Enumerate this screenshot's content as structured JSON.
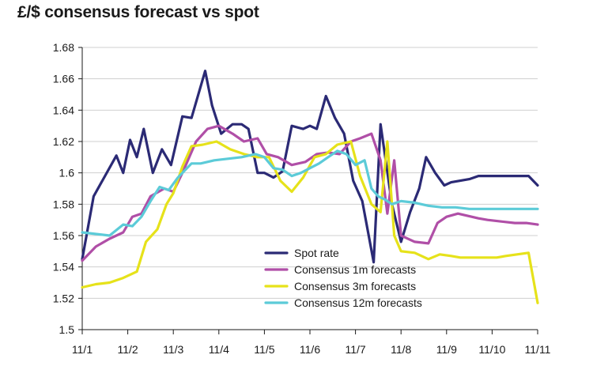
{
  "chart_data": {
    "type": "line",
    "title": "£/$ consensus forecast vs spot",
    "xlabel": "",
    "ylabel": "",
    "ylim": [
      1.5,
      1.68
    ],
    "xlim": [
      0,
      10
    ],
    "x_ticks": [
      0,
      1,
      2,
      3,
      4,
      5,
      6,
      7,
      8,
      9,
      10
    ],
    "x_tick_labels": [
      "11/1",
      "11/2",
      "11/3",
      "11/4",
      "11/5",
      "11/6",
      "11/7",
      "11/8",
      "11/9",
      "11/10",
      "11/11"
    ],
    "y_ticks": [
      1.5,
      1.52,
      1.54,
      1.56,
      1.58,
      1.6,
      1.62,
      1.64,
      1.66,
      1.68
    ],
    "y_tick_labels": [
      "1.5",
      "1.52",
      "1.54",
      "1.56",
      "1.58",
      "1.6",
      "1.62",
      "1.64",
      "1.66",
      "1.68"
    ],
    "legend_position": "bottom-center",
    "series": [
      {
        "name": "Spot rate",
        "color": "#2b2a75",
        "x": [
          0,
          0.25,
          0.5,
          0.75,
          0.9,
          1.05,
          1.2,
          1.35,
          1.55,
          1.75,
          1.95,
          2.2,
          2.4,
          2.7,
          2.85,
          3.05,
          3.3,
          3.5,
          3.65,
          3.85,
          4.0,
          4.2,
          4.4,
          4.6,
          4.85,
          5.0,
          5.15,
          5.35,
          5.55,
          5.75,
          5.95,
          6.15,
          6.4,
          6.55,
          6.8,
          7.0,
          7.2,
          7.4,
          7.55,
          7.75,
          7.95,
          8.1,
          8.3,
          8.5,
          8.6,
          8.7,
          8.8,
          8.9,
          9.0,
          9.2,
          9.4,
          9.6,
          9.8,
          10.0
        ],
        "y": [
          1.545,
          1.585,
          1.598,
          1.611,
          1.6,
          1.621,
          1.61,
          1.628,
          1.6,
          1.615,
          1.605,
          1.636,
          1.635,
          1.665,
          1.643,
          1.625,
          1.631,
          1.631,
          1.628,
          1.6,
          1.6,
          1.597,
          1.601,
          1.63,
          1.628,
          1.63,
          1.628,
          1.649,
          1.635,
          1.625,
          1.595,
          1.582,
          1.543,
          1.631,
          1.58,
          1.556,
          1.575,
          1.59,
          1.61,
          1.6,
          1.592,
          1.594,
          1.595,
          1.596,
          1.597,
          1.598,
          1.598,
          1.598,
          1.598,
          1.598,
          1.598,
          1.598,
          1.598,
          1.592
        ]
      },
      {
        "name": "Consensus 1m forecasts",
        "color": "#b04fa7",
        "x": [
          0,
          0.3,
          0.6,
          0.9,
          1.1,
          1.3,
          1.5,
          1.8,
          2.0,
          2.2,
          2.5,
          2.75,
          3.0,
          3.3,
          3.55,
          3.85,
          4.05,
          4.3,
          4.6,
          4.9,
          5.15,
          5.4,
          5.65,
          5.9,
          6.1,
          6.35,
          6.55,
          6.7,
          6.85,
          7.0,
          7.3,
          7.6,
          7.8,
          8.0,
          8.25,
          8.4,
          8.55,
          8.7,
          8.9,
          9.2,
          9.5,
          9.75,
          10.0
        ],
        "y": [
          1.544,
          1.553,
          1.558,
          1.562,
          1.572,
          1.574,
          1.585,
          1.59,
          1.588,
          1.6,
          1.62,
          1.628,
          1.63,
          1.625,
          1.62,
          1.622,
          1.612,
          1.61,
          1.605,
          1.607,
          1.612,
          1.613,
          1.612,
          1.62,
          1.622,
          1.625,
          1.608,
          1.574,
          1.608,
          1.56,
          1.556,
          1.555,
          1.568,
          1.572,
          1.574,
          1.573,
          1.572,
          1.571,
          1.57,
          1.569,
          1.568,
          1.568,
          1.567
        ]
      },
      {
        "name": "Consensus 3m forecasts",
        "color": "#e6e21a",
        "x": [
          0,
          0.3,
          0.6,
          0.9,
          1.2,
          1.4,
          1.65,
          1.85,
          2.0,
          2.2,
          2.4,
          2.65,
          2.95,
          3.25,
          3.55,
          3.85,
          4.1,
          4.35,
          4.6,
          4.85,
          5.1,
          5.35,
          5.6,
          5.9,
          6.1,
          6.35,
          6.55,
          6.7,
          6.85,
          7.0,
          7.3,
          7.6,
          7.85,
          8.1,
          8.3,
          8.5,
          8.7,
          8.9,
          9.1,
          9.3,
          9.55,
          9.8,
          10.0
        ],
        "y": [
          1.527,
          1.529,
          1.53,
          1.533,
          1.537,
          1.556,
          1.564,
          1.58,
          1.587,
          1.604,
          1.617,
          1.618,
          1.62,
          1.615,
          1.612,
          1.61,
          1.61,
          1.595,
          1.588,
          1.597,
          1.61,
          1.612,
          1.618,
          1.62,
          1.598,
          1.58,
          1.575,
          1.62,
          1.56,
          1.55,
          1.549,
          1.545,
          1.548,
          1.547,
          1.546,
          1.546,
          1.546,
          1.546,
          1.546,
          1.547,
          1.548,
          1.549,
          1.517
        ]
      },
      {
        "name": "Consensus 12m forecasts",
        "color": "#5ccbd8",
        "x": [
          0,
          0.3,
          0.6,
          0.9,
          1.1,
          1.3,
          1.5,
          1.7,
          1.9,
          2.1,
          2.4,
          2.6,
          2.9,
          3.2,
          3.5,
          3.8,
          4.0,
          4.2,
          4.4,
          4.6,
          4.8,
          5.0,
          5.2,
          5.4,
          5.6,
          5.8,
          6.0,
          6.2,
          6.35,
          6.5,
          6.65,
          6.8,
          7.0,
          7.3,
          7.6,
          7.9,
          8.2,
          8.5,
          8.8,
          9.1,
          9.4,
          9.7,
          10.0
        ],
        "y": [
          1.562,
          1.561,
          1.56,
          1.567,
          1.566,
          1.572,
          1.582,
          1.591,
          1.589,
          1.597,
          1.606,
          1.606,
          1.608,
          1.609,
          1.61,
          1.612,
          1.61,
          1.603,
          1.602,
          1.598,
          1.6,
          1.603,
          1.606,
          1.61,
          1.614,
          1.612,
          1.605,
          1.608,
          1.59,
          1.585,
          1.583,
          1.58,
          1.582,
          1.581,
          1.579,
          1.578,
          1.578,
          1.577,
          1.577,
          1.577,
          1.577,
          1.577,
          1.577
        ]
      }
    ]
  }
}
